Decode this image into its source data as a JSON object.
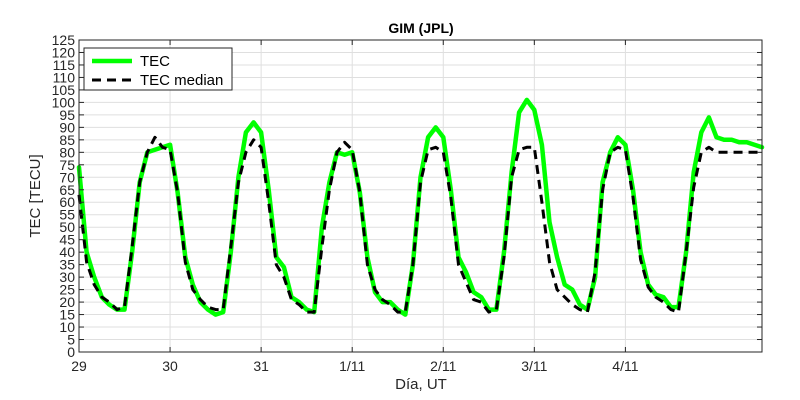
{
  "chart_data": {
    "type": "line",
    "title": "GIM (JPL)",
    "xlabel": "Día, UT",
    "ylabel": "TEC [TECU]",
    "xlim": [
      0,
      7.5
    ],
    "ylim": [
      0,
      125
    ],
    "x_ticks": [
      {
        "value": 0,
        "label": "29"
      },
      {
        "value": 1,
        "label": "30"
      },
      {
        "value": 2,
        "label": "31"
      },
      {
        "value": 3,
        "label": "1/11"
      },
      {
        "value": 4,
        "label": "2/11"
      },
      {
        "value": 5,
        "label": "3/11"
      },
      {
        "value": 6,
        "label": "4/11"
      }
    ],
    "y_ticks": [
      0,
      5,
      10,
      15,
      20,
      25,
      30,
      35,
      40,
      45,
      50,
      55,
      60,
      65,
      70,
      75,
      80,
      85,
      90,
      95,
      100,
      105,
      110,
      115,
      120,
      125
    ],
    "grid": true,
    "legend_position": "top-left",
    "series": [
      {
        "name": "TEC",
        "color": "#00ff00",
        "style": "solid",
        "x": [
          0,
          0.083,
          0.167,
          0.25,
          0.333,
          0.417,
          0.5,
          0.583,
          0.667,
          0.75,
          0.833,
          0.917,
          1,
          1.083,
          1.167,
          1.25,
          1.333,
          1.417,
          1.5,
          1.583,
          1.667,
          1.75,
          1.833,
          1.917,
          2,
          2.083,
          2.167,
          2.25,
          2.333,
          2.417,
          2.5,
          2.583,
          2.667,
          2.75,
          2.833,
          2.917,
          3,
          3.083,
          3.167,
          3.25,
          3.333,
          3.417,
          3.5,
          3.583,
          3.667,
          3.75,
          3.833,
          3.917,
          4,
          4.083,
          4.167,
          4.25,
          4.333,
          4.417,
          4.5,
          4.583,
          4.667,
          4.75,
          4.833,
          4.917,
          5,
          5.083,
          5.167,
          5.25,
          5.333,
          5.417,
          5.5,
          5.583,
          5.667,
          5.75,
          5.833,
          5.917,
          6,
          6.083,
          6.167,
          6.25,
          6.333,
          6.417,
          6.5,
          6.583,
          6.667,
          6.75,
          6.833,
          6.917,
          7,
          7.083,
          7.167,
          7.25,
          7.333,
          7.417,
          7.5
        ],
        "values": [
          74,
          40,
          30,
          22,
          19,
          17,
          17,
          40,
          68,
          80,
          81,
          82,
          83,
          64,
          38,
          27,
          20,
          17,
          15,
          16,
          40,
          70,
          88,
          92,
          88,
          65,
          38,
          34,
          22,
          20,
          17,
          16,
          50,
          68,
          80,
          79,
          80,
          64,
          38,
          24,
          20,
          20,
          17,
          15,
          35,
          70,
          86,
          90,
          86,
          65,
          38,
          32,
          24,
          22,
          17,
          17,
          40,
          72,
          96,
          101,
          97,
          83,
          52,
          38,
          27,
          25,
          19,
          17,
          30,
          68,
          80,
          86,
          83,
          65,
          40,
          27,
          23,
          22,
          18,
          18,
          40,
          72,
          88,
          94,
          86,
          85,
          85,
          84,
          84,
          83,
          82
        ]
      },
      {
        "name": "TEC median",
        "color": "#000000",
        "style": "dashed",
        "x": [
          0,
          0.083,
          0.167,
          0.25,
          0.333,
          0.417,
          0.5,
          0.583,
          0.667,
          0.75,
          0.833,
          0.917,
          1,
          1.083,
          1.167,
          1.25,
          1.333,
          1.417,
          1.5,
          1.583,
          1.667,
          1.75,
          1.833,
          1.917,
          2,
          2.083,
          2.167,
          2.25,
          2.333,
          2.417,
          2.5,
          2.583,
          2.667,
          2.75,
          2.833,
          2.917,
          3,
          3.083,
          3.167,
          3.25,
          3.333,
          3.417,
          3.5,
          3.583,
          3.667,
          3.75,
          3.833,
          3.917,
          4,
          4.083,
          4.167,
          4.25,
          4.333,
          4.417,
          4.5,
          4.583,
          4.667,
          4.75,
          4.833,
          4.917,
          5,
          5.083,
          5.167,
          5.25,
          5.333,
          5.417,
          5.5,
          5.583,
          5.667,
          5.75,
          5.833,
          5.917,
          6,
          6.083,
          6.167,
          6.25,
          6.333,
          6.417,
          6.5,
          6.583,
          6.667,
          6.75,
          6.833,
          6.917,
          7,
          7.083,
          7.167,
          7.25,
          7.333,
          7.417,
          7.5
        ],
        "values": [
          63,
          36,
          27,
          22,
          20,
          17,
          18,
          42,
          68,
          80,
          86,
          82,
          81,
          64,
          36,
          25,
          21,
          18,
          17,
          17,
          42,
          68,
          80,
          85,
          82,
          60,
          35,
          30,
          21,
          19,
          16,
          16,
          42,
          65,
          80,
          84,
          81,
          64,
          35,
          25,
          21,
          19,
          16,
          16,
          35,
          68,
          81,
          82,
          80,
          62,
          35,
          28,
          21,
          20,
          16,
          17,
          38,
          70,
          81,
          82,
          82,
          60,
          36,
          25,
          22,
          19,
          17,
          16,
          32,
          65,
          80,
          82,
          81,
          62,
          37,
          26,
          22,
          20,
          17,
          16,
          40,
          66,
          80,
          82,
          80,
          80,
          80,
          80,
          80,
          80,
          80
        ]
      }
    ]
  }
}
